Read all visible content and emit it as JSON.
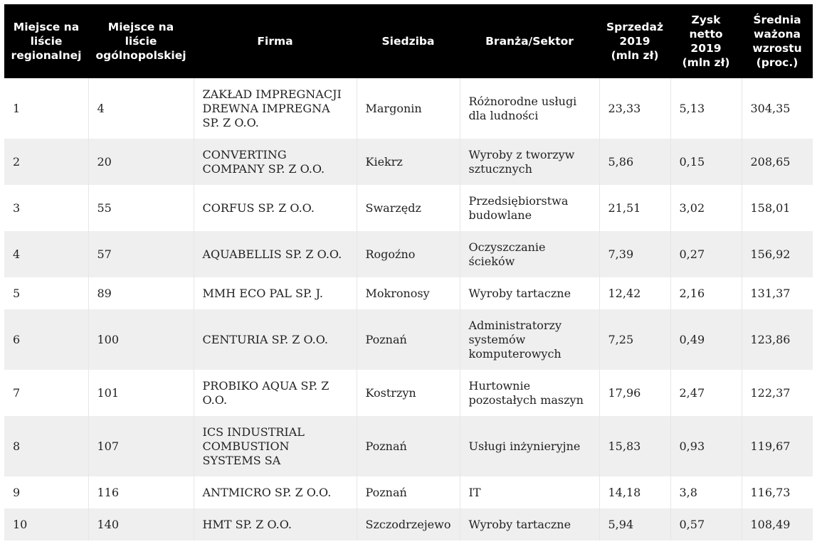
{
  "table": {
    "headers": [
      "Miejsce na liście regionalnej",
      "Miejsce na liście ogólnopolskiej",
      "Firma",
      "Siedziba",
      "Branża/Sektor",
      "Sprzedaż 2019 (mln zł)",
      "Zysk netto 2019 (mln zł)",
      "Średnia ważona wzrostu (proc.)"
    ],
    "rows": [
      [
        "1",
        "4",
        "ZAKŁAD IMPREGNACJI DREWNA IMPREGNA SP. Z O.O.",
        "Margonin",
        "Różnorodne usługi dla ludności",
        "23,33",
        "5,13",
        "304,35"
      ],
      [
        "2",
        "20",
        "CONVERTING COMPANY SP. Z O.O.",
        "Kiekrz",
        "Wyroby z tworzyw sztucznych",
        "5,86",
        "0,15",
        "208,65"
      ],
      [
        "3",
        "55",
        "CORFUS SP. Z O.O.",
        "Swarzędz",
        "Przedsiębiorstwa budowlane",
        "21,51",
        "3,02",
        "158,01"
      ],
      [
        "4",
        "57",
        "AQUABELLIS SP. Z O.O.",
        "Rogoźno",
        "Oczyszczanie ścieków",
        "7,39",
        "0,27",
        "156,92"
      ],
      [
        "5",
        "89",
        "MMH ECO PAL SP. J.",
        "Mokronosy",
        "Wyroby tartaczne",
        "12,42",
        "2,16",
        "131,37"
      ],
      [
        "6",
        "100",
        "CENTURIA SP. Z O.O.",
        "Poznań",
        "Administratorzy systemów komputerowych",
        "7,25",
        "0,49",
        "123,86"
      ],
      [
        "7",
        "101",
        "PROBIKO AQUA SP. Z O.O.",
        "Kostrzyn",
        "Hurtownie pozostałych maszyn",
        "17,96",
        "2,47",
        "122,37"
      ],
      [
        "8",
        "107",
        "ICS INDUSTRIAL COMBUSTION SYSTEMS SA",
        "Poznań",
        "Usługi inżynieryjne",
        "15,83",
        "0,93",
        "119,67"
      ],
      [
        "9",
        "116",
        "ANTMICRO SP. Z O.O.",
        "Poznań",
        "IT",
        "14,18",
        "3,8",
        "116,73"
      ],
      [
        "10",
        "140",
        "HMT SP. Z O.O.",
        "Szczodrzejewo",
        "Wyroby tartaczne",
        "5,94",
        "0,57",
        "108,49"
      ]
    ]
  }
}
